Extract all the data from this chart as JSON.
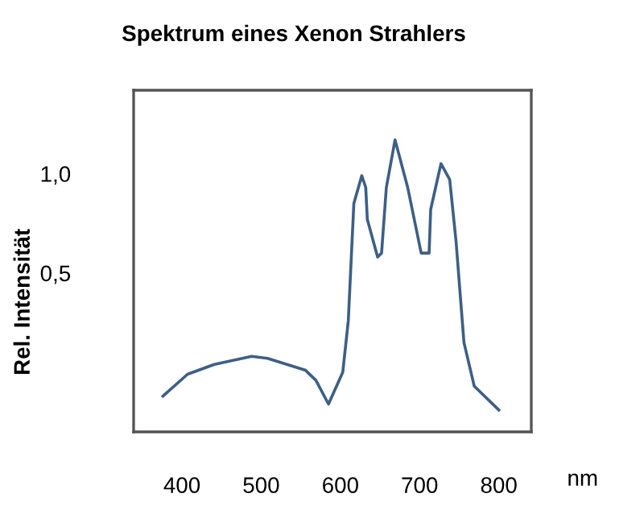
{
  "chart_data": {
    "type": "line",
    "title": "Spektrum eines Xenon Strahlers",
    "xlabel": "nm",
    "ylabel": "Rel. Intensität",
    "x": [
      376,
      407,
      441,
      488,
      508,
      556,
      569,
      585,
      603,
      610,
      617,
      627,
      632,
      634,
      647,
      652,
      658,
      669,
      685,
      702,
      712,
      714,
      727,
      738,
      746,
      756,
      769,
      800
    ],
    "series": [
      {
        "color": "#3d5f86",
        "values": [
          -0.12,
          -0.01,
          0.04,
          0.08,
          0.07,
          0.01,
          -0.04,
          -0.16,
          0.0,
          0.26,
          0.85,
          0.99,
          0.93,
          0.77,
          0.58,
          0.6,
          0.93,
          1.17,
          0.93,
          0.6,
          0.6,
          0.82,
          1.05,
          0.97,
          0.66,
          0.15,
          -0.07,
          -0.19
        ]
      }
    ],
    "xlim": [
      339,
      841
    ],
    "ylim": [
      -0.3,
      1.42
    ],
    "xticks": [
      400,
      500,
      600,
      700,
      800
    ],
    "yticks": [
      {
        "value": 0.5,
        "label": "0,5"
      },
      {
        "value": 1.0,
        "label": "1,0"
      }
    ],
    "grid": false,
    "legend": false,
    "marker": "none",
    "line_style": "solid"
  }
}
